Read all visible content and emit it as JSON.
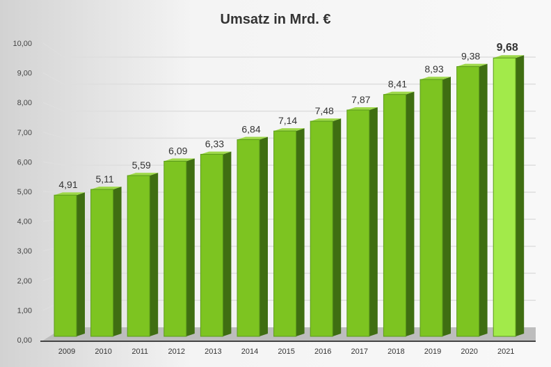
{
  "chart_data": {
    "type": "bar",
    "title": "Umsatz in Mrd.  €",
    "categories": [
      "2009",
      "2010",
      "2011",
      "2012",
      "2013",
      "2014",
      "2015",
      "2016",
      "2017",
      "2018",
      "2019",
      "2020",
      "2021"
    ],
    "values": [
      4.91,
      5.11,
      5.59,
      6.09,
      6.33,
      6.84,
      7.14,
      7.48,
      7.87,
      8.41,
      8.93,
      9.38,
      9.68
    ],
    "data_labels": [
      "4,91",
      "5,11",
      "5,59",
      "6,09",
      "6,33",
      "6,84",
      "7,14",
      "7,48",
      "7,87",
      "8,41",
      "8,93",
      "9,38",
      "9,68"
    ],
    "ylim": [
      0,
      10
    ],
    "yticks": [
      "0,00",
      "1,00",
      "2,00",
      "3,00",
      "4,00",
      "5,00",
      "6,00",
      "7,00",
      "8,00",
      "9,00",
      "10,00"
    ],
    "xlabel": "",
    "ylabel": "",
    "grid": true,
    "style": "3d-column",
    "colors": {
      "bar_front": "#7dc421",
      "bar_side": "#3f6e12",
      "bar_top": "#9ed84a",
      "last_bar_front": "#a2ea4a",
      "floor": "#bdbdbd"
    }
  }
}
